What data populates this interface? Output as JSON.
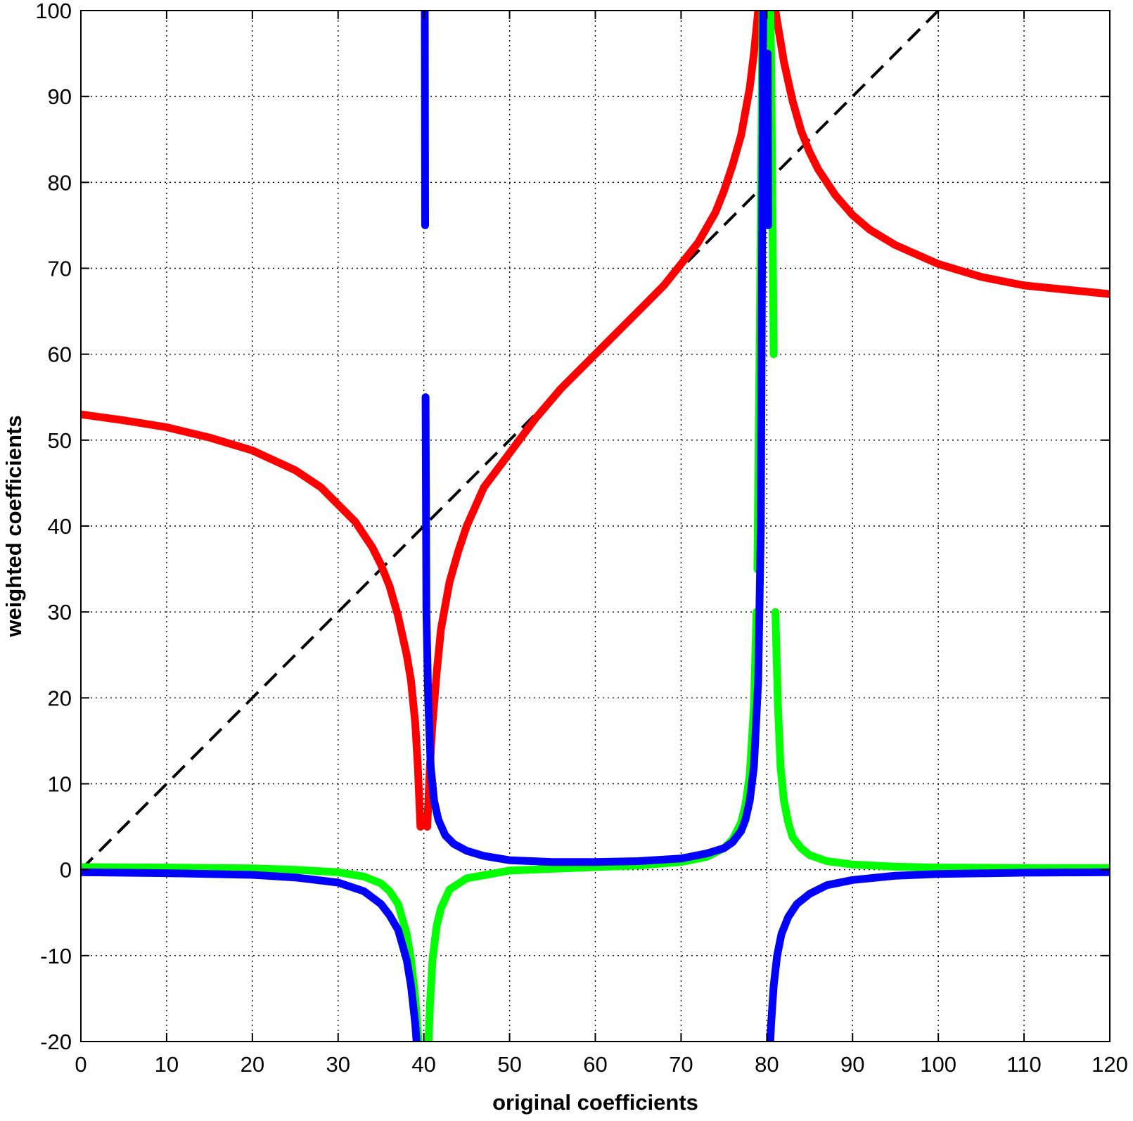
{
  "chart_data": {
    "type": "line",
    "title": "",
    "xlabel": "original coefficients",
    "ylabel": "weighted coefficients",
    "xlim": [
      0,
      120
    ],
    "ylim": [
      -20,
      100
    ],
    "xticks": [
      0,
      10,
      20,
      30,
      40,
      50,
      60,
      70,
      80,
      90,
      100,
      110,
      120
    ],
    "yticks": [
      -20,
      -10,
      0,
      10,
      20,
      30,
      40,
      50,
      60,
      70,
      80,
      90,
      100
    ],
    "grid": true,
    "grid_style": "dotted",
    "legend": "none",
    "series": [
      {
        "color": "#000000",
        "style": "dashed",
        "x": [
          0,
          100
        ],
        "y": [
          0,
          100
        ]
      },
      {
        "color": "#ff0000",
        "style": "solid",
        "segments": [
          {
            "x": [
              0,
              5,
              10,
              15,
              20,
              25,
              28,
              30,
              32,
              34,
              35,
              36,
              37,
              38,
              38.5,
              39,
              39.3,
              39.6
            ],
            "y": [
              53,
              52.3,
              51.5,
              50.3,
              48.8,
              46.5,
              44.5,
              42.5,
              40.5,
              37.5,
              35.5,
              33,
              29.5,
              25,
              22,
              17,
              12,
              5
            ]
          },
          {
            "x": [
              40.4,
              40.7,
              41,
              41.5,
              42,
              43,
              44,
              45,
              47,
              50,
              53,
              56,
              60,
              63,
              66,
              68,
              70,
              72,
              74,
              75,
              76,
              77,
              78,
              78.5,
              79,
              79.5
            ],
            "y": [
              5,
              12,
              17,
              23,
              28,
              33.5,
              37,
              40,
              44.5,
              48.5,
              52.5,
              56,
              60,
              63,
              66,
              68,
              70.5,
              73,
              76.5,
              79,
              82,
              85.5,
              91,
              95,
              100,
              105
            ]
          },
          {
            "x": [
              80.5,
              81,
              81.5,
              82,
              83,
              84,
              85,
              86,
              88,
              90,
              92,
              95,
              100,
              105,
              110,
              115,
              120
            ],
            "y": [
              105,
              100,
              97,
              94,
              89.5,
              86,
              83.5,
              81.5,
              78.5,
              76.2,
              74.5,
              72.7,
              70.5,
              69,
              68,
              67.5,
              67
            ]
          }
        ]
      },
      {
        "color": "#00ff00",
        "style": "solid",
        "segments": [
          {
            "x": [
              0,
              10,
              20,
              25,
              30,
              33,
              35,
              36,
              37,
              38,
              38.5,
              39,
              39.3,
              39.6
            ],
            "y": [
              0.3,
              0.25,
              0.15,
              0,
              -0.3,
              -0.8,
              -1.6,
              -2.5,
              -4,
              -7.5,
              -10.5,
              -15,
              -19,
              -24
            ]
          },
          {
            "x": [
              40.4,
              40.7,
              41,
              41.5,
              42,
              43,
              45,
              50,
              55,
              60,
              65,
              70,
              73,
              75,
              76,
              77,
              77.5,
              78,
              78.5,
              78.8
            ],
            "y": [
              -24,
              -16,
              -10.5,
              -6.5,
              -4.5,
              -2.3,
              -1,
              -0.1,
              0.1,
              0.3,
              0.5,
              0.9,
              1.5,
              2.5,
              3.5,
              5.5,
              7.5,
              11,
              19,
              30
            ]
          },
          {
            "x": [
              78.9,
              79.2,
              79.5,
              79.8
            ],
            "y": [
              35,
              65,
              100,
              110
            ]
          },
          {
            "x": [
              80.2,
              80.5,
              80.8
            ],
            "y": [
              110,
              95,
              60
            ]
          },
          {
            "x": [
              81,
              81.3,
              81.6,
              82,
              82.5,
              83,
              84,
              85,
              87,
              90,
              95,
              100,
              110,
              120
            ],
            "y": [
              30,
              19,
              12,
              8,
              5.5,
              3.8,
              2.5,
              1.7,
              1,
              0.6,
              0.35,
              0.25,
              0.2,
              0.2
            ]
          }
        ]
      },
      {
        "color": "#0000ff",
        "style": "solid",
        "segments": [
          {
            "x": [
              0,
              10,
              20,
              25,
              30,
              33,
              35,
              36,
              37,
              38,
              38.5,
              39,
              39.3,
              39.6
            ],
            "y": [
              -0.3,
              -0.4,
              -0.6,
              -0.9,
              -1.5,
              -2.5,
              -4,
              -5.3,
              -7,
              -10.5,
              -13.5,
              -18,
              -22,
              -27
            ]
          },
          {
            "x": [
              40.1,
              40.15
            ],
            "y": [
              105,
              75
            ]
          },
          {
            "x": [
              40.2,
              40.3,
              40.5,
              40.8,
              41.2,
              41.7,
              42.5,
              43.5,
              45,
              47,
              50,
              55,
              60,
              65,
              70,
              73,
              75,
              76,
              77,
              77.5,
              78,
              78.5,
              79,
              79.3,
              79.6
            ],
            "y": [
              55,
              30,
              20,
              12,
              8,
              5.8,
              4,
              3,
              2.2,
              1.6,
              1.1,
              0.9,
              0.9,
              1,
              1.3,
              1.9,
              2.5,
              3.2,
              4.5,
              5.8,
              8,
              12,
              22,
              40,
              105
            ]
          },
          {
            "x": [
              80.1,
              80.15
            ],
            "y": [
              95,
              75
            ]
          },
          {
            "x": [
              80.2,
              80.3,
              80.5,
              80.8,
              81.2,
              81.7,
              82.5,
              83.5,
              85,
              87,
              90,
              95,
              100,
              110,
              120
            ],
            "y": [
              -27,
              -22,
              -18,
              -13.5,
              -10,
              -7.5,
              -5.5,
              -4,
              -2.8,
              -1.8,
              -1.2,
              -0.7,
              -0.5,
              -0.35,
              -0.3
            ]
          }
        ]
      }
    ]
  }
}
